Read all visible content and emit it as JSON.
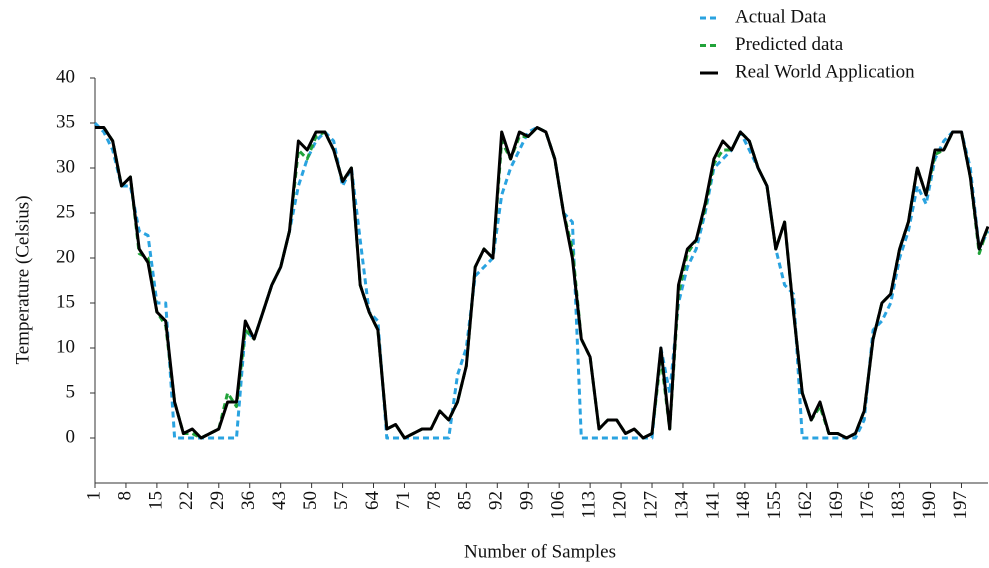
{
  "chart_data": {
    "type": "line",
    "x_label": "Number of Samples",
    "y_label": "Temperature (Celsius)",
    "xlim": [
      1,
      203
    ],
    "ylim": [
      -5,
      40
    ],
    "xticks": [
      1,
      8,
      15,
      22,
      29,
      36,
      43,
      50,
      57,
      64,
      71,
      78,
      85,
      92,
      99,
      106,
      113,
      120,
      127,
      134,
      141,
      148,
      155,
      162,
      169,
      176,
      183,
      190,
      197
    ],
    "yticks": [
      0,
      5,
      10,
      15,
      20,
      25,
      30,
      35,
      40
    ],
    "legend": "upper right",
    "grid": false,
    "x": [
      1,
      3,
      5,
      7,
      9,
      11,
      13,
      15,
      17,
      19,
      21,
      23,
      25,
      27,
      29,
      31,
      33,
      35,
      37,
      39,
      41,
      43,
      45,
      47,
      49,
      51,
      53,
      55,
      57,
      59,
      61,
      63,
      65,
      67,
      69,
      71,
      73,
      75,
      77,
      79,
      81,
      83,
      85,
      87,
      89,
      91,
      93,
      95,
      97,
      99,
      101,
      103,
      105,
      107,
      109,
      111,
      113,
      115,
      117,
      119,
      121,
      123,
      125,
      127,
      129,
      131,
      133,
      135,
      137,
      139,
      141,
      143,
      145,
      147,
      149,
      151,
      153,
      155,
      157,
      159,
      161,
      163,
      165,
      167,
      169,
      171,
      173,
      175,
      177,
      179,
      181,
      183,
      185,
      187,
      189,
      191,
      193,
      195,
      197,
      199,
      201,
      203
    ],
    "series": [
      {
        "name": "Actual Data",
        "color": "#2aa3e0",
        "line_style": "dashed",
        "values": [
          35,
          34,
          32,
          28,
          28,
          23,
          22.5,
          15,
          15,
          0,
          0,
          0,
          0,
          0,
          0,
          0,
          0,
          12,
          11,
          14,
          17,
          19,
          23,
          28,
          31,
          33,
          34,
          33,
          28,
          30,
          22,
          14,
          13,
          0,
          0,
          0,
          0,
          0,
          0,
          0,
          0,
          7,
          10,
          18,
          19,
          20,
          27,
          30,
          32,
          34,
          34.5,
          34,
          31,
          25,
          24,
          0,
          0,
          0,
          0,
          0,
          0,
          0,
          0,
          0,
          10,
          5,
          15,
          19,
          21,
          25,
          30,
          31,
          32,
          34,
          32,
          30,
          28,
          21,
          17,
          16,
          0,
          0,
          0,
          0,
          0,
          0,
          0,
          2,
          12,
          13,
          15,
          20,
          23,
          28,
          26,
          31,
          33,
          34,
          34,
          30,
          21,
          23
        ]
      },
      {
        "name": "Predicted data",
        "color": "#21a33a",
        "line_style": "dashed",
        "values": [
          34.5,
          34.5,
          33,
          28,
          29,
          20.5,
          20,
          14,
          12.5,
          4,
          0.5,
          0.5,
          0,
          0.5,
          1,
          5,
          3.5,
          12,
          11,
          14,
          17,
          19,
          23,
          32,
          31,
          33.5,
          34,
          32,
          28.5,
          30,
          17,
          14,
          12,
          1,
          1.5,
          0,
          0.5,
          1,
          1,
          3,
          2,
          4,
          8,
          19,
          21,
          20,
          33,
          31,
          33.5,
          33.5,
          34.5,
          34,
          31,
          25,
          21,
          11,
          9,
          1,
          2,
          2,
          0.5,
          1,
          0,
          0.5,
          9,
          1,
          16,
          20.5,
          22,
          25.5,
          30.5,
          32,
          32,
          34,
          33,
          30,
          28,
          21,
          24,
          14,
          5,
          2,
          3.5,
          0.5,
          0.5,
          0,
          0.5,
          3,
          11,
          15,
          16,
          21,
          24,
          30,
          27,
          31.5,
          32,
          34,
          34,
          29,
          20.5,
          23.5
        ]
      },
      {
        "name": "Real World Application",
        "color": "#000000",
        "line_style": "solid",
        "values": [
          34.5,
          34.5,
          33,
          28,
          29,
          21,
          19.5,
          14,
          13,
          4,
          0.5,
          1,
          0,
          0.5,
          1,
          4,
          4,
          13,
          11,
          14,
          17,
          19,
          23,
          33,
          32,
          34,
          34,
          32,
          28.5,
          30,
          17,
          14,
          12,
          1,
          1.5,
          0,
          0.5,
          1,
          1,
          3,
          2,
          4,
          8,
          19,
          21,
          20,
          34,
          31,
          34,
          33.5,
          34.5,
          34,
          31,
          25,
          20,
          11,
          9,
          1,
          2,
          2,
          0.5,
          1,
          0,
          0.5,
          10,
          1,
          17,
          21,
          22,
          26,
          31,
          33,
          32,
          34,
          33,
          30,
          28,
          21,
          24,
          14,
          5,
          2,
          4,
          0.5,
          0.5,
          0,
          0.5,
          3,
          11,
          15,
          16,
          21,
          24,
          30,
          27,
          32,
          32,
          34,
          34,
          29,
          21,
          23.5
        ]
      }
    ]
  }
}
